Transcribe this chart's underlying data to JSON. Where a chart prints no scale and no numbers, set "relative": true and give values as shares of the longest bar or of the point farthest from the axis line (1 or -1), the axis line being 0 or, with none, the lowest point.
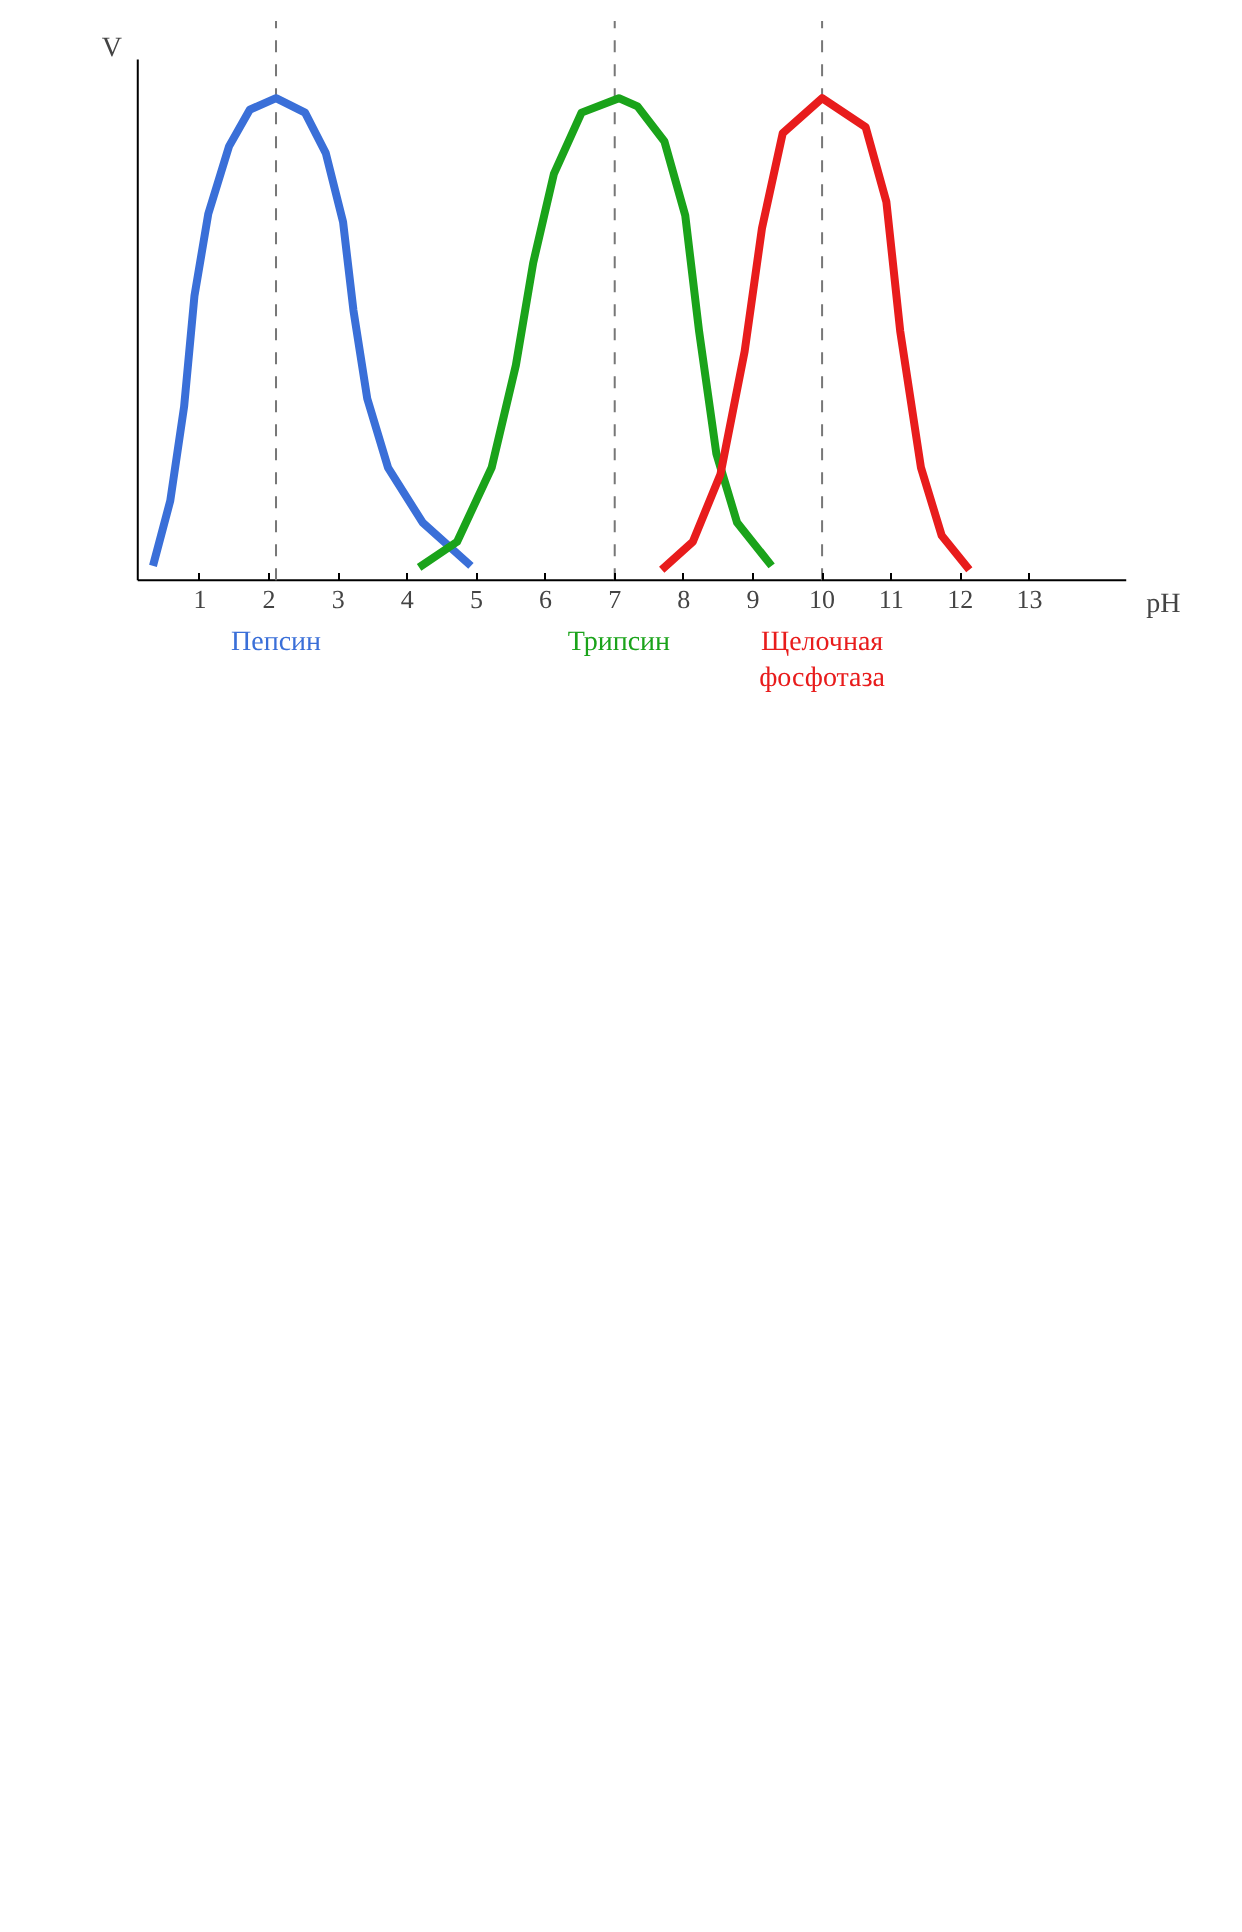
{
  "chart_data": {
    "type": "line",
    "relative": true,
    "ylabel": "V",
    "xlabel": "pH",
    "xlim": [
      0.1,
      14.4
    ],
    "xticks": [
      1,
      2,
      3,
      4,
      5,
      6,
      7,
      8,
      9,
      10,
      11,
      12,
      13
    ],
    "grid": false,
    "line_style": "solid",
    "ref_lines": [
      {
        "axis": "x",
        "value": 2.1,
        "color": "#777777",
        "line_style": "dashed"
      },
      {
        "axis": "x",
        "value": 7,
        "color": "#777777",
        "line_style": "dashed"
      },
      {
        "axis": "x",
        "value": 10,
        "color": "#777777",
        "line_style": "dashed"
      }
    ],
    "series": [
      {
        "name": "Пепсин",
        "color": "#3a6fd8",
        "x": [
          0.32,
          0.57,
          0.77,
          0.92,
          1.12,
          1.42,
          1.72,
          2.1,
          2.52,
          2.82,
          3.07,
          3.22,
          3.42,
          3.72,
          4.22,
          4.92
        ],
        "values": [
          0.03,
          0.165,
          0.36,
          0.59,
          0.76,
          0.9,
          0.976,
          1,
          0.97,
          0.886,
          0.743,
          0.56,
          0.377,
          0.234,
          0.12,
          0.03
        ]
      },
      {
        "name": "Трипсин",
        "color": "#1aa31a",
        "x": [
          4.17,
          4.72,
          5.22,
          5.57,
          5.82,
          6.12,
          6.52,
          7.06,
          7.33,
          7.72,
          8.02,
          8.22,
          8.47,
          8.77,
          9.27
        ],
        "values": [
          0.027,
          0.08,
          0.234,
          0.446,
          0.658,
          0.843,
          0.97,
          1,
          0.983,
          0.91,
          0.757,
          0.517,
          0.263,
          0.12,
          0.03
        ]
      },
      {
        "name": "Щелочная\nфосфотаза",
        "color": "#e81c1c",
        "x": [
          7.68,
          8.13,
          8.53,
          8.88,
          9.13,
          9.43,
          10.0,
          10.63,
          10.93,
          11.13,
          11.43,
          11.73,
          12.13
        ],
        "values": [
          0.022,
          0.08,
          0.22,
          0.475,
          0.73,
          0.927,
          1,
          0.94,
          0.785,
          0.517,
          0.234,
          0.093,
          0.022
        ]
      }
    ]
  }
}
